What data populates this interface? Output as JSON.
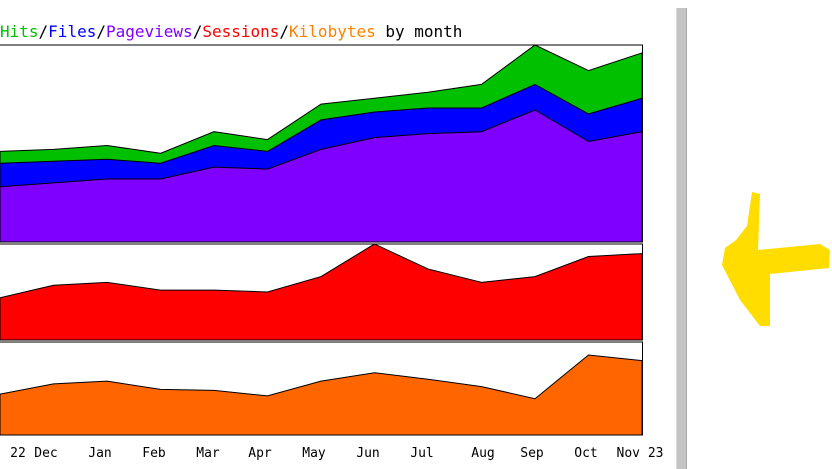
{
  "title_parts": [
    {
      "text": "Hits",
      "color": "#00c000"
    },
    {
      "text": "/",
      "color": "#000000"
    },
    {
      "text": "Files",
      "color": "#0000ff"
    },
    {
      "text": "/",
      "color": "#000000"
    },
    {
      "text": "Pageviews",
      "color": "#8000ff"
    },
    {
      "text": "/",
      "color": "#000000"
    },
    {
      "text": "Sessions",
      "color": "#ff0000"
    },
    {
      "text": "/",
      "color": "#000000"
    },
    {
      "text": "Kilobytes",
      "color": "#ff8000"
    },
    {
      "text": " by month",
      "color": "#000000"
    }
  ],
  "arrow_icon": {
    "name": "yellow-arrow-left-icon",
    "color": "#ffdd00"
  },
  "chart_data": {
    "type": "area",
    "categories": [
      "22",
      "Dec",
      "Jan",
      "Feb",
      "Mar",
      "Apr",
      "May",
      "Jun",
      "Jul",
      "Aug",
      "Sep",
      "Oct",
      "Nov 23"
    ],
    "panels": [
      {
        "name": "hits-files-pageviews",
        "ylim": [
          0,
          1
        ],
        "series": [
          {
            "name": "Hits",
            "color": "#00c000",
            "values": [
              0.46,
              0.47,
              0.49,
              0.45,
              0.56,
              0.52,
              0.7,
              0.73,
              0.76,
              0.8,
              1.0,
              0.87,
              0.96
            ]
          },
          {
            "name": "Files",
            "color": "#0000ff",
            "values": [
              0.4,
              0.41,
              0.42,
              0.4,
              0.49,
              0.46,
              0.62,
              0.66,
              0.68,
              0.68,
              0.8,
              0.65,
              0.73
            ]
          },
          {
            "name": "Pageviews",
            "color": "#8000ff",
            "values": [
              0.28,
              0.3,
              0.32,
              0.32,
              0.38,
              0.37,
              0.47,
              0.53,
              0.55,
              0.56,
              0.67,
              0.51,
              0.56
            ]
          }
        ]
      },
      {
        "name": "sessions",
        "ylim": [
          0,
          1
        ],
        "series": [
          {
            "name": "Sessions",
            "color": "#ff0000",
            "values": [
              0.44,
              0.57,
              0.6,
              0.52,
              0.52,
              0.5,
              0.66,
              1.0,
              0.74,
              0.6,
              0.66,
              0.87,
              0.9
            ]
          }
        ]
      },
      {
        "name": "kilobytes",
        "ylim": [
          0,
          1
        ],
        "series": [
          {
            "name": "Kilobytes",
            "color": "#ff6600",
            "values": [
              0.44,
              0.55,
              0.58,
              0.49,
              0.48,
              0.42,
              0.58,
              0.67,
              0.6,
              0.52,
              0.39,
              0.86,
              0.8
            ]
          }
        ]
      }
    ]
  }
}
